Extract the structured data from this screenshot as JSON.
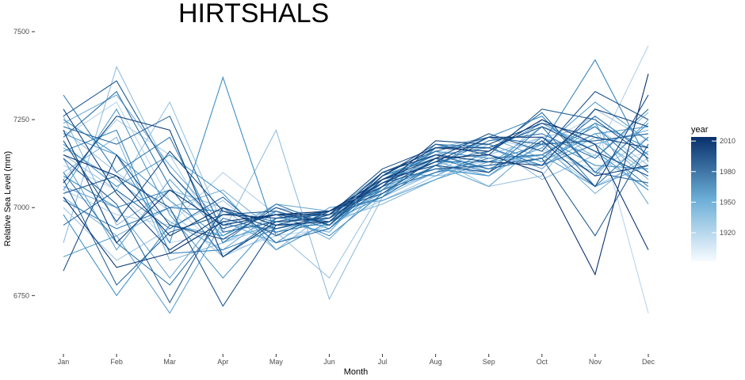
{
  "chart_data": {
    "type": "line",
    "title": "HIRTSHALS",
    "xlabel": "Month",
    "ylabel": "Relative Sea Level (mm)",
    "categories": [
      "Jan",
      "Feb",
      "Mar",
      "Apr",
      "May",
      "Jun",
      "Jul",
      "Aug",
      "Sep",
      "Oct",
      "Nov",
      "Dec"
    ],
    "ylim": [
      6600,
      7500
    ],
    "yticks": [
      6750,
      7000,
      7250,
      7500
    ],
    "grid": false,
    "legend": {
      "title": "year",
      "placement": "right",
      "type": "colorbar",
      "ticks": [
        1920,
        1950,
        1980,
        2010
      ],
      "range": [
        1892,
        2014
      ],
      "color_low": "#f7fbff",
      "color_high": "#08306b"
    },
    "series_count": 40,
    "series": [
      {
        "year": 1895,
        "values": [
          7120,
          7050,
          6900,
          6930,
          6960,
          6990,
          7030,
          7100,
          7120,
          7150,
          7110,
          7160
        ]
      },
      {
        "year": 1898,
        "values": [
          7200,
          7300,
          7020,
          6870,
          6920,
          6940,
          7050,
          7120,
          7090,
          7180,
          7260,
          6700
        ]
      },
      {
        "year": 1901,
        "values": [
          7050,
          6980,
          6950,
          7100,
          6980,
          6960,
          7060,
          7110,
          7130,
          7200,
          7150,
          7460
        ]
      },
      {
        "year": 1904,
        "values": [
          7080,
          7250,
          7150,
          6900,
          6950,
          6980,
          7030,
          7150,
          7200,
          7160,
          7100,
          7200
        ]
      },
      {
        "year": 1907,
        "values": [
          7000,
          6850,
          6940,
          7020,
          6900,
          6950,
          7020,
          7090,
          7110,
          7170,
          7060,
          7140
        ]
      },
      {
        "year": 1910,
        "values": [
          7220,
          7100,
          6990,
          6860,
          6930,
          6800,
          7050,
          7140,
          7060,
          7090,
          7280,
          7190
        ]
      },
      {
        "year": 1913,
        "values": [
          7150,
          7050,
          7300,
          6950,
          7000,
          6970,
          7080,
          7120,
          7150,
          7200,
          7230,
          7120
        ]
      },
      {
        "year": 1916,
        "values": [
          6900,
          7400,
          7100,
          6930,
          7220,
          6740,
          7030,
          7100,
          7180,
          7080,
          7150,
          7050
        ]
      },
      {
        "year": 1919,
        "values": [
          7260,
          6950,
          7050,
          7000,
          6880,
          6990,
          7070,
          7160,
          7100,
          7250,
          7140,
          7270
        ]
      },
      {
        "year": 1922,
        "values": [
          7100,
          7200,
          6850,
          6900,
          6970,
          6960,
          7010,
          7080,
          7150,
          7120,
          7200,
          7100
        ]
      },
      {
        "year": 1925,
        "values": [
          7030,
          6920,
          7000,
          7050,
          6930,
          6980,
          7080,
          7130,
          7090,
          7180,
          7040,
          7160
        ]
      },
      {
        "year": 1928,
        "values": [
          7170,
          7080,
          6960,
          6880,
          6990,
          6910,
          7060,
          7170,
          7200,
          7140,
          7210,
          7080
        ]
      },
      {
        "year": 1931,
        "values": [
          7240,
          7320,
          7120,
          6950,
          6940,
          6970,
          7040,
          7100,
          7120,
          7230,
          7180,
          7220
        ]
      },
      {
        "year": 1934,
        "values": [
          7060,
          7000,
          6800,
          6990,
          6960,
          6930,
          7090,
          7150,
          7170,
          7110,
          7240,
          7010
        ]
      },
      {
        "year": 1937,
        "values": [
          7140,
          6880,
          7080,
          6920,
          7010,
          6990,
          7050,
          7120,
          7060,
          7190,
          7090,
          7250
        ]
      },
      {
        "year": 1940,
        "values": [
          6860,
          6920,
          6700,
          6960,
          6900,
          7000,
          7020,
          7080,
          7130,
          7150,
          7060,
          7120
        ]
      },
      {
        "year": 1943,
        "values": [
          7210,
          7150,
          7020,
          6910,
          6950,
          6950,
          7070,
          7140,
          7110,
          7170,
          7300,
          7190
        ]
      },
      {
        "year": 1946,
        "values": [
          7050,
          7280,
          6980,
          6800,
          6970,
          6980,
          7100,
          7090,
          7160,
          7240,
          7160,
          7050
        ]
      },
      {
        "year": 1949,
        "values": [
          7180,
          7060,
          7150,
          7040,
          6880,
          6960,
          7030,
          7170,
          7180,
          7130,
          7210,
          7230
        ]
      },
      {
        "year": 1952,
        "values": [
          6980,
          6750,
          6950,
          6920,
          6990,
          6940,
          7060,
          7110,
          7090,
          7200,
          7120,
          7110
        ]
      },
      {
        "year": 1955,
        "values": [
          7250,
          7150,
          6900,
          7370,
          6920,
          6990,
          7080,
          7160,
          7140,
          7150,
          7240,
          7170
        ]
      },
      {
        "year": 1958,
        "values": [
          7090,
          7000,
          7050,
          6950,
          6980,
          6920,
          7040,
          7120,
          7200,
          7260,
          7100,
          7240
        ]
      },
      {
        "year": 1961,
        "values": [
          7160,
          7220,
          6870,
          6880,
          6940,
          6970,
          7070,
          7130,
          7130,
          7180,
          7420,
          7130
        ]
      },
      {
        "year": 1964,
        "values": [
          7020,
          6940,
          7000,
          6990,
          6960,
          6990,
          7050,
          7180,
          7170,
          7120,
          7180,
          7060
        ]
      },
      {
        "year": 1967,
        "values": [
          7320,
          7100,
          7200,
          6900,
          7010,
          6950,
          7090,
          7140,
          7100,
          7230,
          7060,
          7200
        ]
      },
      {
        "year": 1970,
        "values": [
          7100,
          6900,
          6780,
          6970,
          6930,
          6960,
          7050,
          7100,
          7140,
          7150,
          7230,
          7100
        ]
      },
      {
        "year": 1973,
        "values": [
          7200,
          7330,
          7060,
          6860,
          6970,
          6980,
          7030,
          7120,
          7190,
          7210,
          7140,
          7280
        ]
      },
      {
        "year": 1976,
        "values": [
          6950,
          7050,
          6940,
          7030,
          6900,
          6940,
          7080,
          7150,
          7110,
          7140,
          7260,
          7150
        ]
      },
      {
        "year": 1979,
        "values": [
          7230,
          7180,
          7260,
          6930,
          6960,
          6970,
          7060,
          7130,
          7160,
          7270,
          7100,
          7070
        ]
      },
      {
        "year": 1982,
        "values": [
          7080,
          6780,
          6930,
          6980,
          6990,
          6950,
          7100,
          7160,
          7200,
          7180,
          7190,
          7210
        ]
      },
      {
        "year": 1985,
        "values": [
          7140,
          7010,
          6730,
          7000,
          6920,
          6990,
          7070,
          7110,
          7120,
          7140,
          6920,
          7180
        ]
      },
      {
        "year": 1988,
        "values": [
          7260,
          7360,
          7100,
          6940,
          6980,
          6960,
          7090,
          7180,
          7150,
          7280,
          7250,
          7140
        ]
      },
      {
        "year": 1991,
        "values": [
          7040,
          7090,
          7000,
          6720,
          6950,
          6990,
          7040,
          7140,
          7210,
          7160,
          7330,
          7250
        ]
      },
      {
        "year": 1994,
        "values": [
          7190,
          6960,
          7160,
          6990,
          6940,
          6980,
          7110,
          7170,
          7170,
          7230,
          7160,
          7090
        ]
      },
      {
        "year": 1997,
        "values": [
          6820,
          7150,
          6950,
          6910,
          7000,
          6950,
          7080,
          7120,
          7100,
          7190,
          7060,
          7320
        ]
      },
      {
        "year": 2000,
        "values": [
          7280,
          7040,
          6880,
          6980,
          6970,
          6990,
          7060,
          7190,
          7180,
          7240,
          7200,
          7170
        ]
      },
      {
        "year": 2003,
        "values": [
          7070,
          7260,
          7220,
          6860,
          6960,
          6970,
          7100,
          7150,
          7130,
          7120,
          7280,
          7230
        ]
      },
      {
        "year": 2006,
        "values": [
          7220,
          6900,
          7050,
          6950,
          6980,
          6980,
          7070,
          7130,
          7200,
          7200,
          7090,
          7120
        ]
      },
      {
        "year": 2009,
        "values": [
          7150,
          7090,
          6920,
          7000,
          6950,
          6960,
          7090,
          7170,
          7160,
          7250,
          7180,
          6880
        ]
      },
      {
        "year": 2012,
        "values": [
          7030,
          6830,
          6870,
          6960,
          6980,
          6990,
          7080,
          7140,
          7150,
          7100,
          6810,
          7380
        ]
      }
    ]
  }
}
